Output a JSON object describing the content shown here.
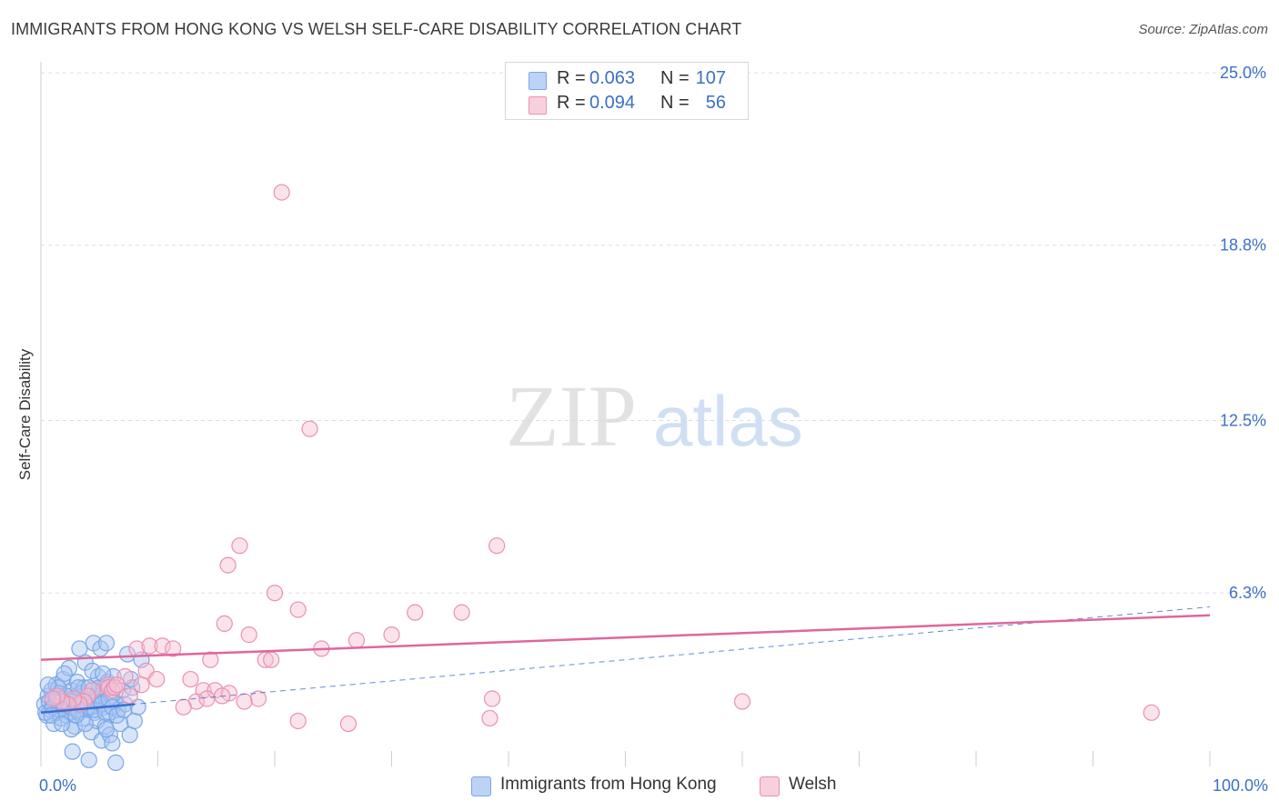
{
  "title": "IMMIGRANTS FROM HONG KONG VS WELSH SELF-CARE DISABILITY CORRELATION CHART",
  "source": "Source: ZipAtlas.com",
  "watermark": {
    "zip": "ZIP",
    "atlas": "atlas"
  },
  "colors": {
    "blue": "#7aa6e8",
    "blue_fill": "#a9c6f2",
    "blue_line": "#3a6fd0",
    "pink": "#e991b0",
    "pink_fill": "#f6c2d4",
    "pink_line": "#e0679a",
    "tick_text": "#3c6fc9",
    "grid": "#dddddd"
  },
  "stats": [
    {
      "r_label": "R =",
      "r_value": "0.063",
      "n_label": "N =",
      "n_value": "107",
      "color": "blue"
    },
    {
      "r_label": "R =",
      "r_value": "0.094",
      "n_label": "N =",
      "n_value": "56",
      "color": "pink"
    }
  ],
  "legend": [
    {
      "label": "Immigrants from Hong Kong",
      "color": "blue"
    },
    {
      "label": "Welsh",
      "color": "pink"
    }
  ],
  "chart_data": {
    "type": "scatter",
    "title": "IMMIGRANTS FROM HONG KONG VS WELSH SELF-CARE DISABILITY CORRELATION CHART",
    "xlabel": "",
    "ylabel": "Self-Care Disability",
    "xlim": [
      0,
      100
    ],
    "ylim": [
      0,
      25
    ],
    "x_tick_labels": [
      "0.0%",
      "100.0%"
    ],
    "y_ticks": [
      6.3,
      12.5,
      18.8,
      25.0
    ],
    "y_tick_labels": [
      "6.3%",
      "12.5%",
      "18.8%",
      "25.0%"
    ],
    "grid": true,
    "legend_position": "bottom-center",
    "series": [
      {
        "name": "Immigrants from Hong Kong",
        "color": "blue",
        "r": 0.063,
        "n": 107,
        "trend_solid": {
          "x": [
            0,
            8
          ],
          "y": [
            2.0,
            2.3
          ]
        },
        "trend_dashed": {
          "x": [
            0,
            100
          ],
          "y": [
            2.0,
            5.8
          ]
        },
        "points": [
          [
            0.3,
            2.3
          ],
          [
            0.5,
            1.9
          ],
          [
            0.6,
            2.6
          ],
          [
            0.8,
            2.1
          ],
          [
            0.9,
            2.8
          ],
          [
            1.0,
            2.4
          ],
          [
            1.1,
            1.6
          ],
          [
            1.2,
            2.2
          ],
          [
            1.3,
            3.0
          ],
          [
            1.4,
            2.0
          ],
          [
            1.5,
            2.5
          ],
          [
            1.6,
            2.7
          ],
          [
            1.7,
            1.8
          ],
          [
            1.8,
            2.3
          ],
          [
            1.9,
            3.2
          ],
          [
            2.0,
            2.1
          ],
          [
            2.1,
            2.6
          ],
          [
            2.2,
            1.9
          ],
          [
            2.3,
            2.4
          ],
          [
            2.4,
            3.6
          ],
          [
            2.5,
            2.0
          ],
          [
            2.6,
            2.8
          ],
          [
            2.7,
            0.6
          ],
          [
            2.8,
            2.2
          ],
          [
            2.9,
            1.5
          ],
          [
            3.0,
            2.5
          ],
          [
            3.1,
            3.1
          ],
          [
            3.2,
            2.0
          ],
          [
            3.3,
            4.3
          ],
          [
            3.4,
            2.7
          ],
          [
            3.5,
            2.3
          ],
          [
            3.6,
            1.8
          ],
          [
            3.7,
            2.9
          ],
          [
            3.8,
            3.8
          ],
          [
            3.9,
            2.1
          ],
          [
            4.0,
            2.5
          ],
          [
            4.1,
            0.3
          ],
          [
            4.2,
            2.2
          ],
          [
            4.3,
            1.3
          ],
          [
            4.4,
            2.8
          ],
          [
            4.5,
            4.5
          ],
          [
            4.6,
            2.0
          ],
          [
            4.7,
            2.6
          ],
          [
            4.8,
            1.7
          ],
          [
            4.9,
            3.3
          ],
          [
            5.0,
            2.4
          ],
          [
            5.1,
            4.3
          ],
          [
            5.2,
            1.0
          ],
          [
            5.3,
            2.9
          ],
          [
            5.4,
            2.2
          ],
          [
            5.5,
            1.5
          ],
          [
            5.6,
            4.5
          ],
          [
            5.7,
            3.1
          ],
          [
            5.8,
            2.0
          ],
          [
            5.9,
            1.2
          ],
          [
            6.0,
            2.6
          ],
          [
            6.1,
            0.9
          ],
          [
            6.2,
            3.3
          ],
          [
            6.3,
            2.4
          ],
          [
            6.4,
            0.2
          ],
          [
            6.6,
            2.1
          ],
          [
            6.8,
            1.6
          ],
          [
            7.0,
            2.8
          ],
          [
            7.2,
            2.3
          ],
          [
            7.4,
            4.1
          ],
          [
            7.6,
            1.2
          ],
          [
            7.8,
            2.9
          ],
          [
            8.0,
            1.7
          ],
          [
            8.3,
            2.2
          ],
          [
            8.6,
            3.9
          ],
          [
            0.4,
            2.0
          ],
          [
            0.7,
            2.4
          ],
          [
            1.0,
            2.2
          ],
          [
            1.3,
            2.5
          ],
          [
            1.6,
            2.1
          ],
          [
            1.9,
            2.3
          ],
          [
            2.2,
            2.6
          ],
          [
            2.5,
            2.2
          ],
          [
            2.8,
            2.4
          ],
          [
            3.1,
            2.1
          ],
          [
            3.4,
            2.3
          ],
          [
            3.7,
            2.5
          ],
          [
            4.0,
            2.2
          ],
          [
            4.3,
            2.4
          ],
          [
            4.6,
            2.1
          ],
          [
            4.9,
            2.6
          ],
          [
            5.2,
            2.3
          ],
          [
            5.5,
            2.0
          ],
          [
            5.8,
            2.5
          ],
          [
            6.1,
            2.2
          ],
          [
            0.9,
            1.9
          ],
          [
            1.5,
            2.9
          ],
          [
            2.0,
            3.4
          ],
          [
            2.6,
            1.4
          ],
          [
            3.2,
            2.9
          ],
          [
            3.8,
            1.6
          ],
          [
            4.4,
            3.5
          ],
          [
            5.0,
            2.9
          ],
          [
            5.6,
            1.4
          ],
          [
            6.5,
            1.9
          ],
          [
            7.1,
            2.1
          ],
          [
            7.7,
            3.2
          ],
          [
            0.6,
            3.0
          ],
          [
            1.8,
            1.6
          ],
          [
            3.0,
            1.9
          ],
          [
            4.1,
            2.9
          ],
          [
            5.3,
            3.4
          ]
        ]
      },
      {
        "name": "Welsh",
        "color": "pink",
        "r": 0.094,
        "n": 56,
        "trend_solid": {
          "x": [
            0,
            100
          ],
          "y": [
            3.9,
            5.5
          ]
        },
        "points": [
          [
            20.6,
            20.7
          ],
          [
            23.0,
            12.2
          ],
          [
            17.0,
            8.0
          ],
          [
            39.0,
            8.0
          ],
          [
            16.0,
            7.3
          ],
          [
            20.0,
            6.3
          ],
          [
            22.0,
            5.7
          ],
          [
            32.0,
            5.6
          ],
          [
            36.0,
            5.6
          ],
          [
            15.7,
            5.2
          ],
          [
            17.8,
            4.8
          ],
          [
            30.0,
            4.8
          ],
          [
            27.0,
            4.6
          ],
          [
            24.0,
            4.3
          ],
          [
            8.2,
            4.3
          ],
          [
            9.3,
            4.4
          ],
          [
            10.4,
            4.4
          ],
          [
            11.3,
            4.3
          ],
          [
            14.5,
            3.9
          ],
          [
            19.2,
            3.9
          ],
          [
            19.7,
            3.9
          ],
          [
            12.8,
            3.2
          ],
          [
            9.0,
            3.5
          ],
          [
            7.2,
            3.3
          ],
          [
            5.7,
            3.0
          ],
          [
            5.8,
            2.9
          ],
          [
            6.1,
            2.8
          ],
          [
            6.3,
            2.9
          ],
          [
            6.5,
            3.0
          ],
          [
            4.4,
            2.8
          ],
          [
            4.0,
            2.6
          ],
          [
            3.7,
            2.4
          ],
          [
            3.3,
            2.3
          ],
          [
            2.8,
            2.5
          ],
          [
            2.3,
            2.3
          ],
          [
            1.8,
            2.4
          ],
          [
            1.4,
            2.6
          ],
          [
            1.0,
            2.5
          ],
          [
            7.6,
            2.6
          ],
          [
            8.6,
            3.0
          ],
          [
            13.9,
            2.8
          ],
          [
            14.9,
            2.8
          ],
          [
            16.1,
            2.7
          ],
          [
            18.6,
            2.5
          ],
          [
            17.4,
            2.4
          ],
          [
            13.3,
            2.4
          ],
          [
            12.2,
            2.2
          ],
          [
            14.2,
            2.5
          ],
          [
            15.5,
            2.6
          ],
          [
            38.4,
            1.8
          ],
          [
            22.0,
            1.7
          ],
          [
            26.3,
            1.6
          ],
          [
            38.6,
            2.5
          ],
          [
            60.0,
            2.4
          ],
          [
            95.0,
            2.0
          ],
          [
            9.9,
            3.2
          ]
        ]
      }
    ]
  }
}
